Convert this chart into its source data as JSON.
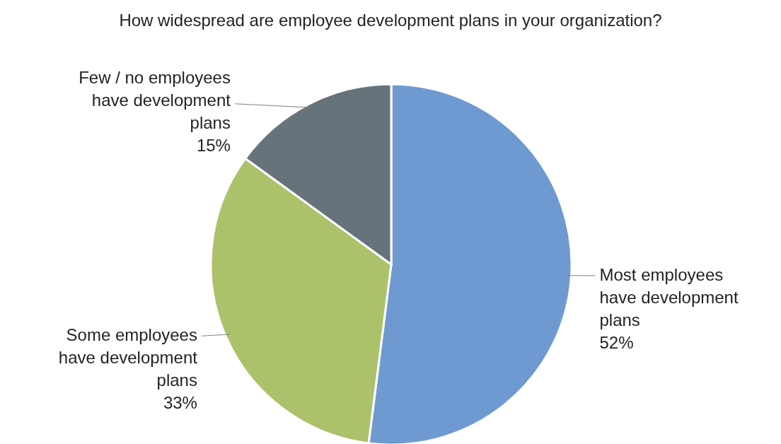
{
  "chart_data": {
    "type": "pie",
    "title": "How widespread are employee development plans in your organization?",
    "categories": [
      "Most employees have development plans",
      "Some employees have development plans",
      "Few / no employees have development plans"
    ],
    "values": [
      52,
      33,
      15
    ],
    "colors": [
      "#6f9ad1",
      "#abc26b",
      "#67737a"
    ],
    "value_labels": [
      "52%",
      "33%",
      "15%"
    ]
  }
}
